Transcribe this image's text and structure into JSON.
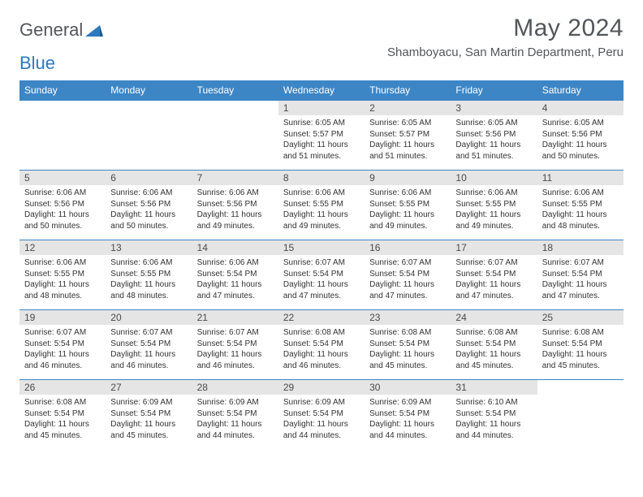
{
  "logo": {
    "text1": "General",
    "text2": "Blue"
  },
  "title": "May 2024",
  "location": "Shamboyacu, San Martin Department, Peru",
  "colors": {
    "header_bg": "#3d86c6",
    "header_text": "#ffffff",
    "daynum_bg": "#e5e5e5",
    "border": "#3d86c6",
    "text": "#333333",
    "title_text": "#53565a"
  },
  "weekdays": [
    "Sunday",
    "Monday",
    "Tuesday",
    "Wednesday",
    "Thursday",
    "Friday",
    "Saturday"
  ],
  "weeks": [
    [
      {
        "empty": true
      },
      {
        "empty": true
      },
      {
        "empty": true
      },
      {
        "day": "1",
        "sunrise": "6:05 AM",
        "sunset": "5:57 PM",
        "daylight": "11 hours and 51 minutes."
      },
      {
        "day": "2",
        "sunrise": "6:05 AM",
        "sunset": "5:57 PM",
        "daylight": "11 hours and 51 minutes."
      },
      {
        "day": "3",
        "sunrise": "6:05 AM",
        "sunset": "5:56 PM",
        "daylight": "11 hours and 51 minutes."
      },
      {
        "day": "4",
        "sunrise": "6:05 AM",
        "sunset": "5:56 PM",
        "daylight": "11 hours and 50 minutes."
      }
    ],
    [
      {
        "day": "5",
        "sunrise": "6:06 AM",
        "sunset": "5:56 PM",
        "daylight": "11 hours and 50 minutes."
      },
      {
        "day": "6",
        "sunrise": "6:06 AM",
        "sunset": "5:56 PM",
        "daylight": "11 hours and 50 minutes."
      },
      {
        "day": "7",
        "sunrise": "6:06 AM",
        "sunset": "5:56 PM",
        "daylight": "11 hours and 49 minutes."
      },
      {
        "day": "8",
        "sunrise": "6:06 AM",
        "sunset": "5:55 PM",
        "daylight": "11 hours and 49 minutes."
      },
      {
        "day": "9",
        "sunrise": "6:06 AM",
        "sunset": "5:55 PM",
        "daylight": "11 hours and 49 minutes."
      },
      {
        "day": "10",
        "sunrise": "6:06 AM",
        "sunset": "5:55 PM",
        "daylight": "11 hours and 49 minutes."
      },
      {
        "day": "11",
        "sunrise": "6:06 AM",
        "sunset": "5:55 PM",
        "daylight": "11 hours and 48 minutes."
      }
    ],
    [
      {
        "day": "12",
        "sunrise": "6:06 AM",
        "sunset": "5:55 PM",
        "daylight": "11 hours and 48 minutes."
      },
      {
        "day": "13",
        "sunrise": "6:06 AM",
        "sunset": "5:55 PM",
        "daylight": "11 hours and 48 minutes."
      },
      {
        "day": "14",
        "sunrise": "6:06 AM",
        "sunset": "5:54 PM",
        "daylight": "11 hours and 47 minutes."
      },
      {
        "day": "15",
        "sunrise": "6:07 AM",
        "sunset": "5:54 PM",
        "daylight": "11 hours and 47 minutes."
      },
      {
        "day": "16",
        "sunrise": "6:07 AM",
        "sunset": "5:54 PM",
        "daylight": "11 hours and 47 minutes."
      },
      {
        "day": "17",
        "sunrise": "6:07 AM",
        "sunset": "5:54 PM",
        "daylight": "11 hours and 47 minutes."
      },
      {
        "day": "18",
        "sunrise": "6:07 AM",
        "sunset": "5:54 PM",
        "daylight": "11 hours and 47 minutes."
      }
    ],
    [
      {
        "day": "19",
        "sunrise": "6:07 AM",
        "sunset": "5:54 PM",
        "daylight": "11 hours and 46 minutes."
      },
      {
        "day": "20",
        "sunrise": "6:07 AM",
        "sunset": "5:54 PM",
        "daylight": "11 hours and 46 minutes."
      },
      {
        "day": "21",
        "sunrise": "6:07 AM",
        "sunset": "5:54 PM",
        "daylight": "11 hours and 46 minutes."
      },
      {
        "day": "22",
        "sunrise": "6:08 AM",
        "sunset": "5:54 PM",
        "daylight": "11 hours and 46 minutes."
      },
      {
        "day": "23",
        "sunrise": "6:08 AM",
        "sunset": "5:54 PM",
        "daylight": "11 hours and 45 minutes."
      },
      {
        "day": "24",
        "sunrise": "6:08 AM",
        "sunset": "5:54 PM",
        "daylight": "11 hours and 45 minutes."
      },
      {
        "day": "25",
        "sunrise": "6:08 AM",
        "sunset": "5:54 PM",
        "daylight": "11 hours and 45 minutes."
      }
    ],
    [
      {
        "day": "26",
        "sunrise": "6:08 AM",
        "sunset": "5:54 PM",
        "daylight": "11 hours and 45 minutes."
      },
      {
        "day": "27",
        "sunrise": "6:09 AM",
        "sunset": "5:54 PM",
        "daylight": "11 hours and 45 minutes."
      },
      {
        "day": "28",
        "sunrise": "6:09 AM",
        "sunset": "5:54 PM",
        "daylight": "11 hours and 44 minutes."
      },
      {
        "day": "29",
        "sunrise": "6:09 AM",
        "sunset": "5:54 PM",
        "daylight": "11 hours and 44 minutes."
      },
      {
        "day": "30",
        "sunrise": "6:09 AM",
        "sunset": "5:54 PM",
        "daylight": "11 hours and 44 minutes."
      },
      {
        "day": "31",
        "sunrise": "6:10 AM",
        "sunset": "5:54 PM",
        "daylight": "11 hours and 44 minutes."
      },
      {
        "empty": true
      }
    ]
  ],
  "labels": {
    "sunrise": "Sunrise:",
    "sunset": "Sunset:",
    "daylight": "Daylight:"
  }
}
